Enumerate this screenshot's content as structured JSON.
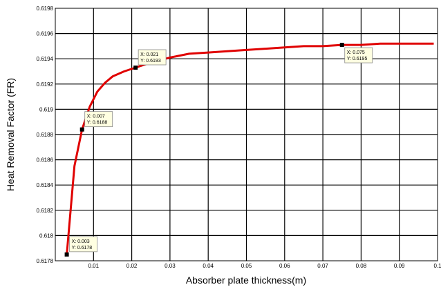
{
  "chart_data": {
    "type": "line",
    "xlabel": "Absorber plate thickness(m)",
    "ylabel": "Heat Removal Factor (FR)",
    "xlim": [
      0,
      0.1
    ],
    "ylim": [
      0.6178,
      0.6198
    ],
    "grid": true,
    "x_ticks": [
      {
        "value": 0.01,
        "label": "0.01"
      },
      {
        "value": 0.02,
        "label": "0.02"
      },
      {
        "value": 0.03,
        "label": "0.03"
      },
      {
        "value": 0.04,
        "label": "0.04"
      },
      {
        "value": 0.05,
        "label": "0.05"
      },
      {
        "value": 0.06,
        "label": "0.06"
      },
      {
        "value": 0.07,
        "label": "0.07"
      },
      {
        "value": 0.08,
        "label": "0.08"
      },
      {
        "value": 0.09,
        "label": "0.09"
      },
      {
        "value": 0.1,
        "label": "0.1"
      }
    ],
    "y_ticks": [
      {
        "value": 0.6178,
        "label": "0.6178"
      },
      {
        "value": 0.618,
        "label": "0.618"
      },
      {
        "value": 0.6182,
        "label": "0.6182"
      },
      {
        "value": 0.6184,
        "label": "0.6184"
      },
      {
        "value": 0.6186,
        "label": "0.6186"
      },
      {
        "value": 0.6188,
        "label": "0.6188"
      },
      {
        "value": 0.619,
        "label": "0.619"
      },
      {
        "value": 0.6192,
        "label": "0.6192"
      },
      {
        "value": 0.6194,
        "label": "0.6194"
      },
      {
        "value": 0.6196,
        "label": "0.6196"
      },
      {
        "value": 0.6198,
        "label": "0.6198"
      }
    ],
    "series": [
      {
        "color": "#e00000",
        "x": [
          0.003,
          0.005,
          0.007,
          0.009,
          0.011,
          0.013,
          0.015,
          0.018,
          0.021,
          0.025,
          0.03,
          0.035,
          0.04,
          0.045,
          0.05,
          0.055,
          0.06,
          0.065,
          0.07,
          0.075,
          0.08,
          0.085,
          0.09,
          0.095,
          0.099
        ],
        "y": [
          0.61785,
          0.61855,
          0.61884,
          0.61902,
          0.61914,
          0.61921,
          0.61926,
          0.6193,
          0.61933,
          0.61937,
          0.61941,
          0.61944,
          0.61945,
          0.61946,
          0.61947,
          0.61948,
          0.61949,
          0.6195,
          0.6195,
          0.61951,
          0.61951,
          0.61952,
          0.61952,
          0.61952,
          0.61952
        ]
      }
    ],
    "datatips": [
      {
        "x": 0.003,
        "y": 0.61785,
        "x_text": "X: 0.003",
        "y_text": "Y: 0.6178",
        "side": "right-up"
      },
      {
        "x": 0.007,
        "y": 0.61884,
        "x_text": "X: 0.007",
        "y_text": "Y: 0.6188",
        "side": "right-up"
      },
      {
        "x": 0.021,
        "y": 0.61933,
        "x_text": "X: 0.021",
        "y_text": "Y: 0.6193",
        "side": "right-up"
      },
      {
        "x": 0.075,
        "y": 0.61951,
        "x_text": "X: 0.075",
        "y_text": "Y: 0.6195",
        "side": "right-down"
      }
    ]
  }
}
